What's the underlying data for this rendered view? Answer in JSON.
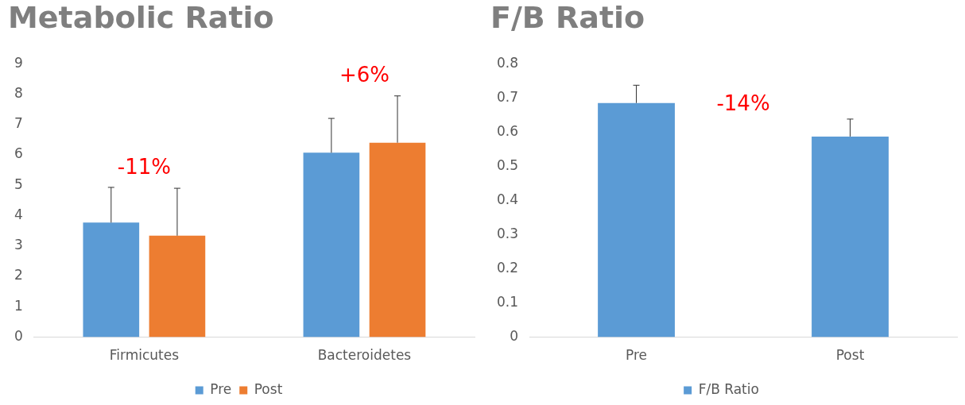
{
  "chart_data": [
    {
      "type": "bar",
      "title": "Metabolic Ratio",
      "categories": [
        "Firmicutes",
        "Bacteroidetes"
      ],
      "series": [
        {
          "name": "Pre",
          "color": "#5b9bd5",
          "values": [
            3.77,
            6.07
          ],
          "errors": [
            [
              3.77,
              4.93
            ],
            [
              6.07,
              7.2
            ]
          ]
        },
        {
          "name": "Post",
          "color": "#ed7d31",
          "values": [
            3.34,
            6.4
          ],
          "errors": [
            [
              3.34,
              4.9
            ],
            [
              6.4,
              7.94
            ]
          ]
        }
      ],
      "ylim": [
        0,
        9
      ],
      "yticks": [
        0,
        1,
        2,
        3,
        4,
        5,
        6,
        7,
        8,
        9
      ],
      "grid": false,
      "legend": "bottom",
      "annotations": [
        "-11%",
        "+6%"
      ]
    },
    {
      "type": "bar",
      "title": "F/B Ratio",
      "categories": [
        "Pre",
        "Post"
      ],
      "series": [
        {
          "name": "F/B Ratio",
          "color": "#5b9bd5",
          "values": [
            0.685,
            0.587
          ],
          "errors": [
            [
              0.685,
              0.737
            ],
            [
              0.587,
              0.638
            ]
          ]
        }
      ],
      "ylim": [
        0,
        0.8
      ],
      "yticks": [
        0,
        0.1,
        0.2,
        0.3,
        0.4,
        0.5,
        0.6,
        0.7,
        0.8
      ],
      "grid": false,
      "legend": "bottom",
      "annotations": [
        "-14%"
      ]
    }
  ]
}
